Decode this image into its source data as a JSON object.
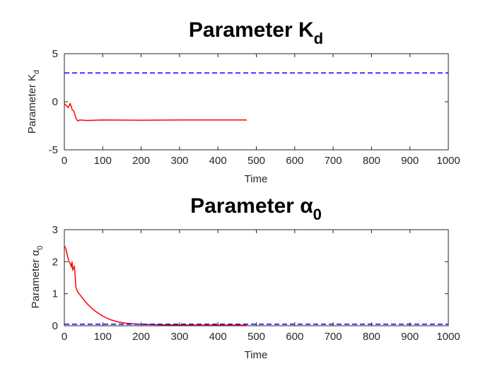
{
  "chart_data": [
    {
      "type": "line",
      "title": "Parameter K",
      "title_subscript": "d",
      "xlabel": "Time",
      "ylabel": "Parameter K",
      "ylabel_subscript": "d",
      "xlim": [
        0,
        1000
      ],
      "ylim": [
        -5,
        5
      ],
      "xticks": [
        0,
        100,
        200,
        300,
        400,
        500,
        600,
        700,
        800,
        900,
        1000
      ],
      "yticks": [
        -5,
        0,
        5
      ],
      "grid": false,
      "series": [
        {
          "style": "solid",
          "color": "#ff0000",
          "x": [
            0,
            5,
            10,
            15,
            18,
            20,
            25,
            30,
            35,
            40,
            60,
            100,
            200,
            300,
            400,
            475
          ],
          "y": [
            -0.2,
            -0.4,
            -0.6,
            -0.2,
            -0.5,
            -0.8,
            -1.0,
            -1.7,
            -2.0,
            -1.9,
            -1.95,
            -1.9,
            -1.92,
            -1.9,
            -1.9,
            -1.9
          ]
        },
        {
          "style": "dashed",
          "color": "#0000ff",
          "x": [
            0,
            1000
          ],
          "y": [
            3,
            3
          ]
        }
      ]
    },
    {
      "type": "line",
      "title": "Parameter α",
      "title_subscript": "0",
      "xlabel": "Time",
      "ylabel": "Parameter α",
      "ylabel_subscript": "0",
      "xlim": [
        0,
        1000
      ],
      "ylim": [
        0,
        3
      ],
      "xticks": [
        0,
        100,
        200,
        300,
        400,
        500,
        600,
        700,
        800,
        900,
        1000
      ],
      "yticks": [
        0,
        1,
        2,
        3
      ],
      "grid": false,
      "series": [
        {
          "style": "solid",
          "color": "#ff0000",
          "x": [
            0,
            4,
            8,
            12,
            15,
            18,
            20,
            22,
            24,
            26,
            28,
            30,
            35,
            40,
            50,
            60,
            70,
            80,
            100,
            120,
            140,
            160,
            180,
            200,
            250,
            300,
            350,
            400,
            475
          ],
          "y": [
            2.5,
            2.4,
            2.2,
            2.0,
            1.95,
            1.85,
            2.0,
            1.75,
            1.8,
            1.85,
            1.6,
            1.2,
            1.05,
            0.98,
            0.82,
            0.68,
            0.56,
            0.46,
            0.3,
            0.19,
            0.12,
            0.08,
            0.06,
            0.045,
            0.03,
            0.025,
            0.02,
            0.02,
            0.02
          ]
        },
        {
          "style": "dashed",
          "color": "#0000ff",
          "x": [
            0,
            1000
          ],
          "y": [
            0.05,
            0.05
          ]
        }
      ]
    }
  ]
}
